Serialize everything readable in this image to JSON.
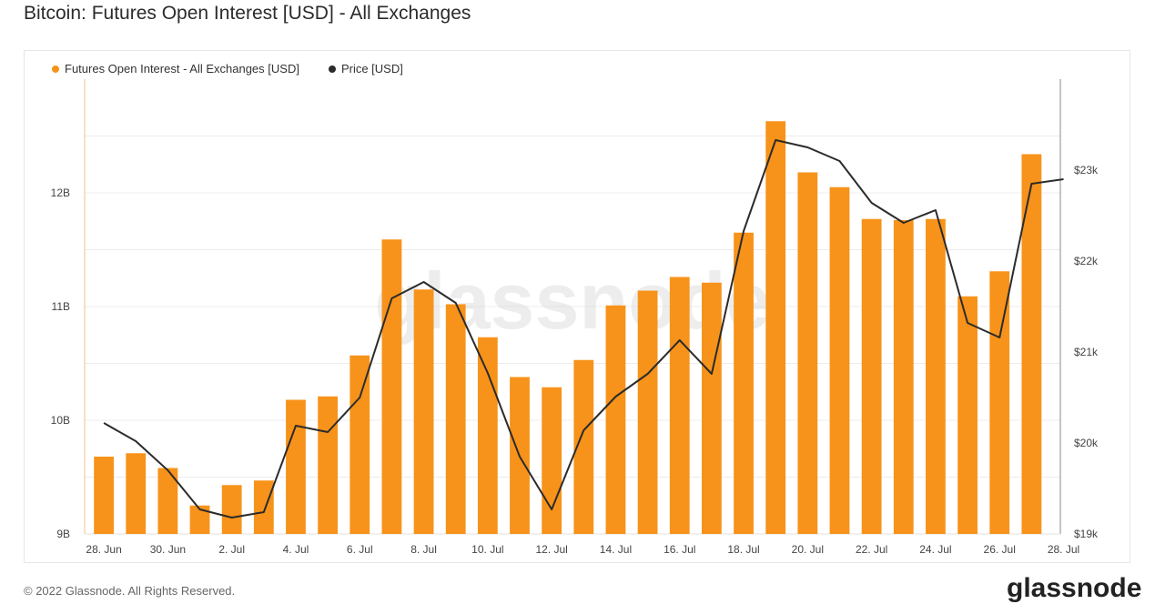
{
  "title": "Bitcoin: Futures Open Interest [USD] - All Exchanges",
  "watermark": "glassnode",
  "footer": {
    "copyright": "© 2022 Glassnode. All Rights Reserved.",
    "logo": "glassnode"
  },
  "chart_data": {
    "type": "bar+line",
    "title": "Bitcoin: Futures Open Interest [USD] - All Exchanges",
    "legend": {
      "placement": "top-left"
    },
    "grid": true,
    "x_ticks": [
      "28. Jun",
      "30. Jun",
      "2. Jul",
      "4. Jul",
      "6. Jul",
      "8. Jul",
      "10. Jul",
      "12. Jul",
      "14. Jul",
      "16. Jul",
      "18. Jul",
      "20. Jul",
      "22. Jul",
      "24. Jul",
      "26. Jul",
      "28. Jul"
    ],
    "y_left": {
      "ticks": [
        "9B",
        "10B",
        "11B",
        "12B"
      ],
      "range": [
        9,
        13.0
      ]
    },
    "y_right": {
      "ticks": [
        "$19k",
        "$20k",
        "$21k",
        "$22k",
        "$23k"
      ],
      "range": [
        19000,
        24000
      ]
    },
    "series": [
      {
        "name": "Futures Open Interest - All Exchanges [USD]",
        "type": "bar",
        "color": "#f7931a",
        "unit": "B USD",
        "values": [
          9.68,
          9.71,
          9.58,
          9.25,
          9.43,
          9.47,
          10.18,
          10.21,
          10.57,
          11.59,
          11.15,
          11.02,
          10.73,
          10.38,
          10.29,
          10.53,
          11.01,
          11.14,
          11.26,
          11.21,
          11.65,
          12.63,
          12.18,
          12.05,
          11.77,
          11.76,
          11.77,
          11.09,
          11.31,
          12.34
        ]
      },
      {
        "name": "Price [USD]",
        "type": "line",
        "color": "#2b2b2b",
        "unit": "USD",
        "values": [
          20220,
          20020,
          19700,
          19270,
          19180,
          19240,
          20190,
          20120,
          20500,
          21590,
          21770,
          21540,
          20770,
          19850,
          19270,
          20140,
          20510,
          20760,
          21130,
          20760,
          22330,
          23330,
          23250,
          23100,
          22640,
          22420,
          22560,
          21320,
          21160,
          22850,
          22900
        ]
      }
    ]
  }
}
